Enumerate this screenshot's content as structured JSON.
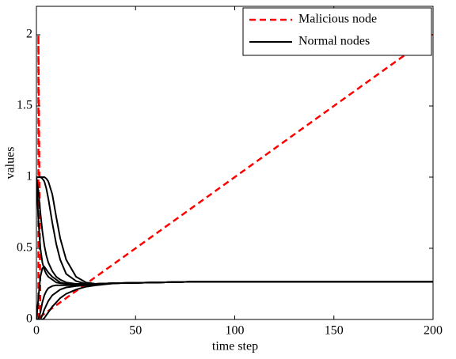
{
  "chart_data": {
    "type": "line",
    "xlabel": "time step",
    "ylabel": "values",
    "xlim": [
      0,
      200
    ],
    "xticks": [
      0,
      50,
      100,
      150,
      200
    ],
    "ylim": [
      0,
      2.2
    ],
    "yticks": [
      0,
      0.5,
      1,
      1.5,
      2
    ],
    "legend": "upper right",
    "grid": false,
    "series": [
      {
        "name": "Malicious node",
        "color": "#ff0000",
        "dash": true,
        "x": [
          1,
          1,
          2,
          200
        ],
        "values": [
          0,
          2,
          0.02,
          2
        ]
      },
      {
        "name": "Normal nodes",
        "color": "#000000",
        "dash": false,
        "x": [
          0,
          1,
          2,
          3,
          4,
          5,
          6,
          8,
          10,
          12,
          15,
          20,
          25,
          30,
          40,
          60,
          80,
          100,
          150,
          200
        ],
        "values": [
          [
            1,
            1,
            1,
            1,
            1,
            0.99,
            0.97,
            0.88,
            0.72,
            0.57,
            0.42,
            0.3,
            0.26,
            0.25,
            0.255,
            0.26,
            0.265,
            0.265,
            0.265,
            0.265
          ],
          [
            1,
            1,
            1,
            0.99,
            0.97,
            0.92,
            0.85,
            0.68,
            0.53,
            0.42,
            0.32,
            0.27,
            0.25,
            0.25,
            0.255,
            0.26,
            0.265,
            0.265,
            0.265,
            0.265
          ],
          [
            1,
            0.9,
            0.75,
            0.62,
            0.52,
            0.45,
            0.4,
            0.34,
            0.3,
            0.28,
            0.26,
            0.25,
            0.25,
            0.25,
            0.255,
            0.26,
            0.265,
            0.265,
            0.265,
            0.265
          ],
          [
            1,
            0.7,
            0.5,
            0.4,
            0.35,
            0.32,
            0.3,
            0.28,
            0.26,
            0.255,
            0.25,
            0.245,
            0.245,
            0.25,
            0.255,
            0.26,
            0.265,
            0.265,
            0.265,
            0.265
          ],
          [
            0,
            0.15,
            0.3,
            0.36,
            0.37,
            0.35,
            0.33,
            0.3,
            0.28,
            0.26,
            0.25,
            0.245,
            0.245,
            0.25,
            0.255,
            0.26,
            0.265,
            0.265,
            0.265,
            0.265
          ],
          [
            0,
            0,
            0.05,
            0.12,
            0.17,
            0.2,
            0.22,
            0.235,
            0.24,
            0.24,
            0.24,
            0.24,
            0.245,
            0.25,
            0.255,
            0.26,
            0.265,
            0.265,
            0.265,
            0.265
          ],
          [
            0,
            0,
            0,
            0.03,
            0.07,
            0.1,
            0.13,
            0.17,
            0.19,
            0.21,
            0.225,
            0.235,
            0.24,
            0.245,
            0.255,
            0.26,
            0.265,
            0.265,
            0.265,
            0.265
          ],
          [
            0,
            0,
            0,
            0,
            0.01,
            0.03,
            0.05,
            0.09,
            0.12,
            0.15,
            0.18,
            0.21,
            0.23,
            0.24,
            0.255,
            0.26,
            0.265,
            0.265,
            0.265,
            0.265
          ]
        ]
      }
    ]
  }
}
